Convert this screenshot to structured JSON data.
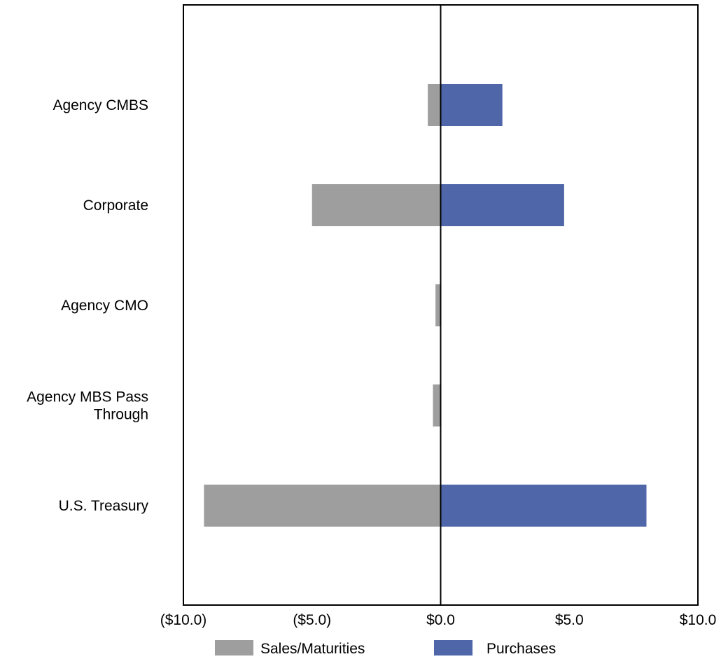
{
  "chart_data": {
    "type": "bar",
    "orientation": "horizontal",
    "title": "",
    "xlabel": "",
    "ylabel": "",
    "xlim": [
      -10,
      10
    ],
    "xticks": [
      {
        "value": -10,
        "label": "($10.0)"
      },
      {
        "value": -5,
        "label": "($5.0)"
      },
      {
        "value": 0,
        "label": "$0.0"
      },
      {
        "value": 5,
        "label": "$5.0"
      },
      {
        "value": 10,
        "label": "$10.0"
      }
    ],
    "categories": [
      [
        "Agency CMBS"
      ],
      [
        "Corporate"
      ],
      [
        "Agency CMO"
      ],
      [
        "Agency MBS Pass",
        "Through"
      ],
      [
        "U.S. Treasury"
      ]
    ],
    "series": [
      {
        "name": "Sales/Maturities",
        "color": "#9e9e9e",
        "values": [
          -0.5,
          -5.0,
          -0.2,
          -0.3,
          -9.2
        ]
      },
      {
        "name": "Purchases",
        "color": "#4f67a8",
        "values": [
          2.4,
          4.8,
          0.0,
          0.0,
          8.0
        ]
      }
    ],
    "legend": {
      "position": "bottom"
    },
    "grid": false
  }
}
